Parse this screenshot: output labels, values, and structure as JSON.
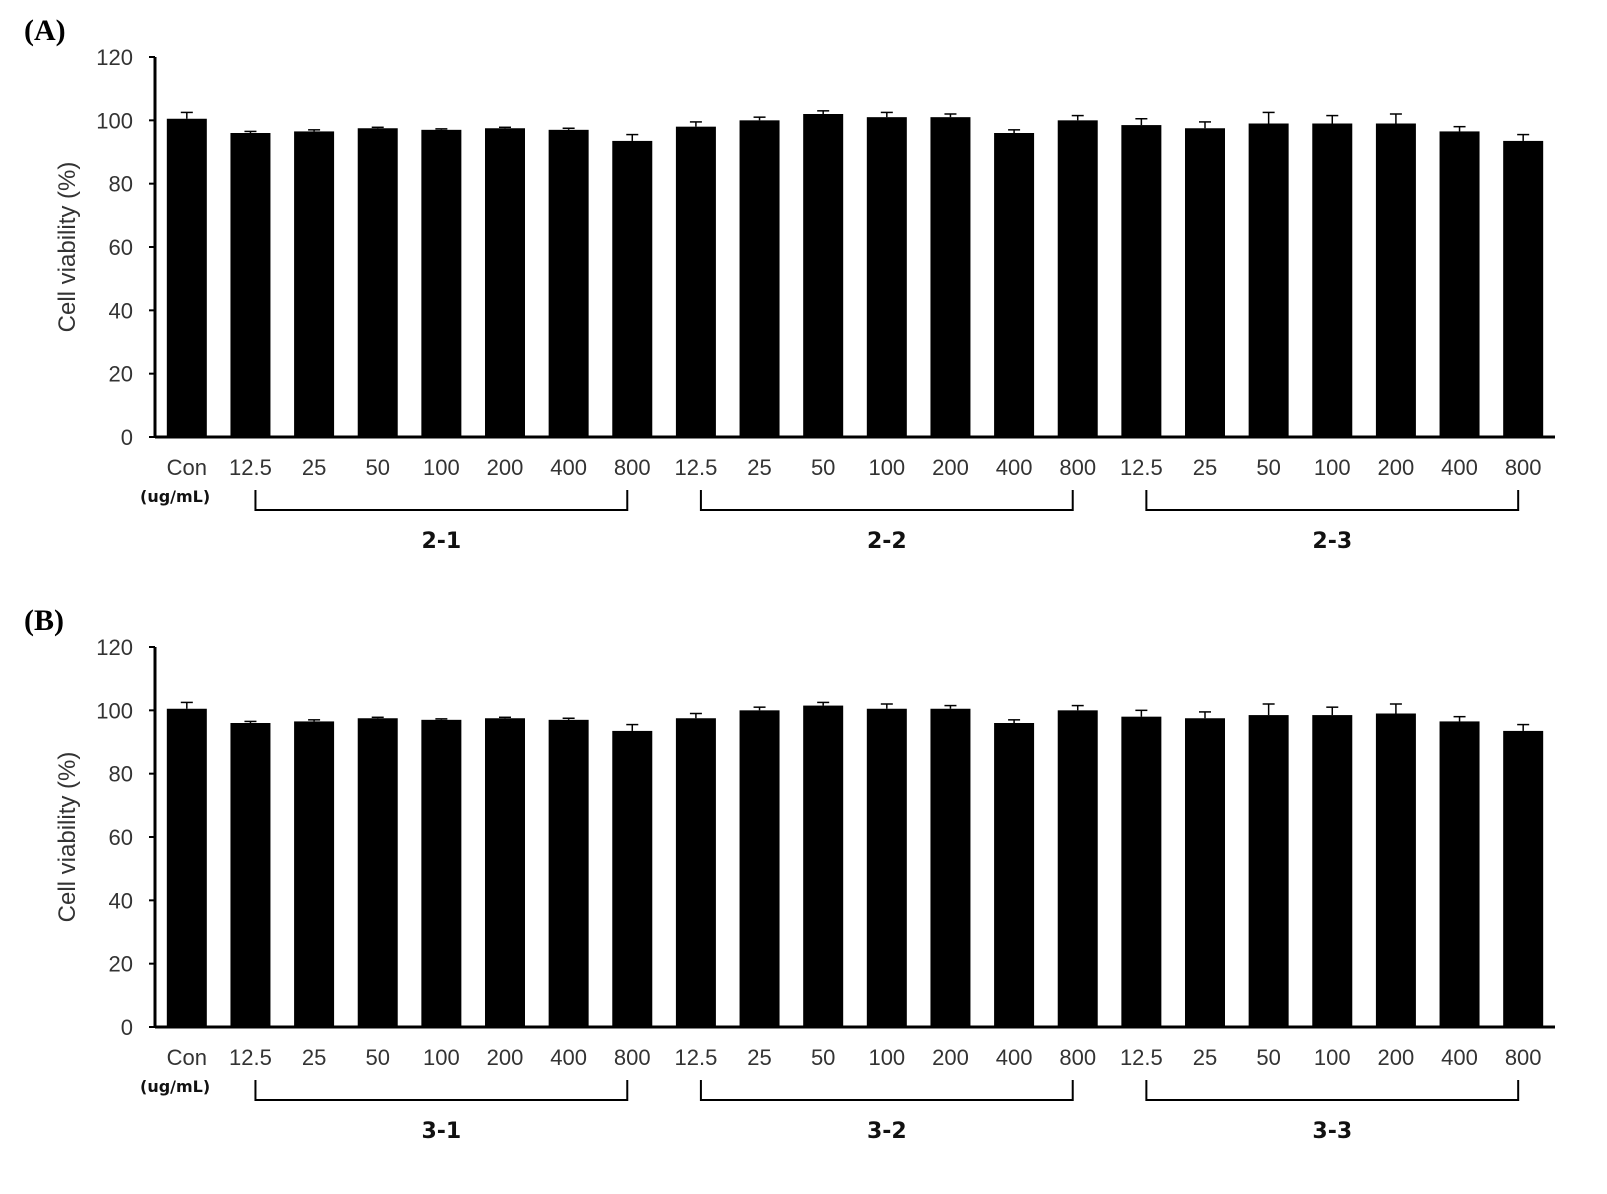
{
  "chart_data": [
    {
      "type": "bar",
      "panel_label": "(A)",
      "ylabel": "Cell viability (%)",
      "unit_label": "(ug/mL)",
      "ylim": [
        0,
        120
      ],
      "yticks": [
        "0",
        "20",
        "40",
        "60",
        "80",
        "100",
        "120"
      ],
      "categories": [
        "Con",
        "12.5",
        "25",
        "50",
        "100",
        "200",
        "400",
        "800",
        "12.5",
        "25",
        "50",
        "100",
        "200",
        "400",
        "800",
        "12.5",
        "25",
        "50",
        "100",
        "200",
        "400",
        "800"
      ],
      "values": [
        100.5,
        96,
        96.5,
        97.5,
        97,
        97.5,
        97,
        93.5,
        98,
        100,
        102,
        101,
        101,
        96,
        100,
        98.5,
        97.5,
        99,
        99,
        99,
        96.5,
        93.5
      ],
      "errors": [
        2,
        0.5,
        0.5,
        0.3,
        0.3,
        0.3,
        0.5,
        2,
        1.5,
        1,
        1,
        1.5,
        1,
        1,
        1.5,
        2,
        2,
        3.5,
        2.5,
        3,
        1.5,
        2
      ],
      "groups": [
        {
          "label": "2-1",
          "start": 1,
          "end": 7
        },
        {
          "label": "2-2",
          "start": 8,
          "end": 14
        },
        {
          "label": "2-3",
          "start": 15,
          "end": 21
        }
      ],
      "color": "#000000"
    },
    {
      "type": "bar",
      "panel_label": "(B)",
      "ylabel": "Cell viability (%)",
      "unit_label": "(ug/mL)",
      "ylim": [
        0,
        120
      ],
      "yticks": [
        "0",
        "20",
        "40",
        "60",
        "80",
        "100",
        "120"
      ],
      "categories": [
        "Con",
        "12.5",
        "25",
        "50",
        "100",
        "200",
        "400",
        "800",
        "12.5",
        "25",
        "50",
        "100",
        "200",
        "400",
        "800",
        "12.5",
        "25",
        "50",
        "100",
        "200",
        "400",
        "800"
      ],
      "values": [
        100.5,
        96,
        96.5,
        97.5,
        97,
        97.5,
        97,
        93.5,
        97.5,
        100,
        101.5,
        100.5,
        100.5,
        96,
        100,
        98,
        97.5,
        98.5,
        98.5,
        99,
        96.5,
        93.5
      ],
      "errors": [
        2,
        0.5,
        0.5,
        0.3,
        0.3,
        0.3,
        0.5,
        2,
        1.5,
        1,
        1,
        1.5,
        1,
        1,
        1.5,
        2,
        2,
        3.5,
        2.5,
        3,
        1.5,
        2
      ],
      "groups": [
        {
          "label": "3-1",
          "start": 1,
          "end": 7
        },
        {
          "label": "3-2",
          "start": 8,
          "end": 14
        },
        {
          "label": "3-3",
          "start": 15,
          "end": 21
        }
      ],
      "color": "#000000"
    }
  ]
}
